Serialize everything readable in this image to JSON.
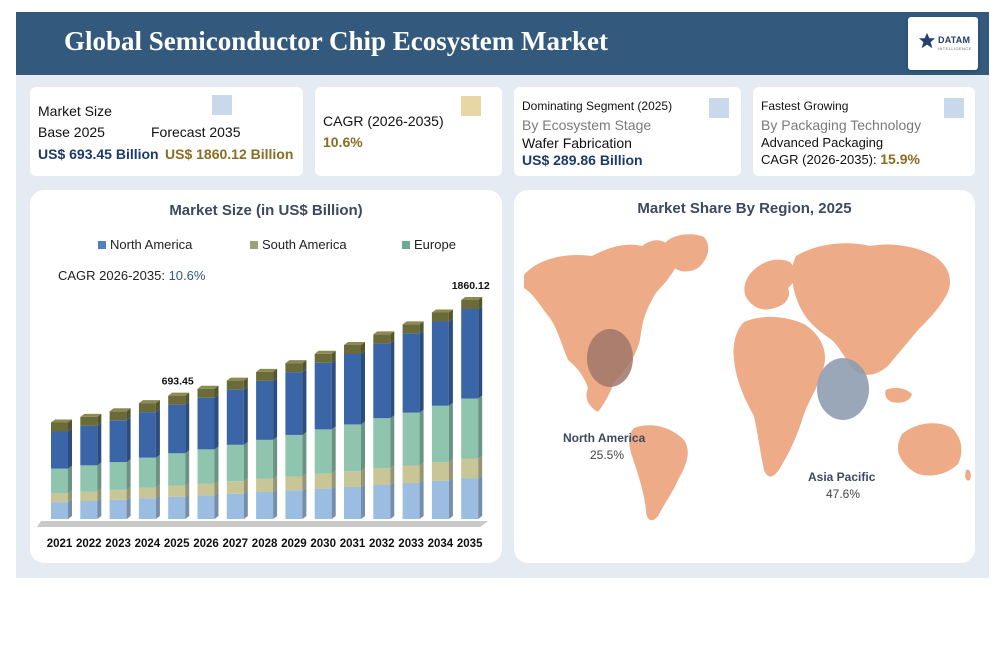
{
  "header": {
    "title": "Global Semiconductor Chip Ecosystem Market",
    "logo_text": "DATAM",
    "logo_sub": "INTELLIGENCE"
  },
  "cards": {
    "market_size": {
      "title": "Market Size",
      "base_label": "Base 2025",
      "forecast_label": "Forecast 2035",
      "base_value": "US$ 693.45 Billion",
      "forecast_value": "US$ 1860.12 Billion",
      "accent": "#c9d8ea"
    },
    "cagr": {
      "title": "CAGR (2026-2035)",
      "value": "10.6%",
      "accent": "#e8d7a4"
    },
    "dominating": {
      "title": "Dominating Segment (2025)",
      "category": "By Ecosystem Stage",
      "segment": "Wafer Fabrication",
      "value": "US$ 289.86 Billion",
      "accent": "#c9d8ea"
    },
    "fastest": {
      "title": "Fastest Growing",
      "category": "By Packaging Technology",
      "segment": "Advanced Packaging",
      "cagr_label": "CAGR (2026-2035):",
      "cagr_value": "15.9%",
      "accent": "#c9d8ea"
    }
  },
  "bar_panel": {
    "title": "Market Size (in US$ Billion)",
    "cagr_label": "CAGR 2026-2035:",
    "cagr_value": "10.6%"
  },
  "map_panel": {
    "title": "Market Share By Region, 2025",
    "regions": [
      {
        "name": "North America",
        "share": "25.5%"
      },
      {
        "name": "Asia Pacific",
        "share": "47.6%"
      }
    ]
  },
  "chart_data": {
    "type": "bar",
    "stacked": true,
    "title": "Market Size (in US$ Billion)",
    "categories": [
      "2021",
      "2022",
      "2023",
      "2024",
      "2025",
      "2026",
      "2027",
      "2028",
      "2029",
      "2030",
      "2031",
      "2032",
      "2033",
      "2034",
      "2035"
    ],
    "series": [
      {
        "name": "North America",
        "color": "#4f81bd",
        "values": [
          60,
          64,
          68,
          74,
          79,
          84,
          90,
          96,
          102,
          108,
          114,
          121,
          128,
          136,
          144
        ]
      },
      {
        "name": "South America",
        "color": "#9aa37a",
        "values": [
          14,
          15,
          16,
          17,
          18,
          19,
          20,
          21,
          22,
          24,
          25,
          27,
          28,
          30,
          32
        ]
      },
      {
        "name": "Europe",
        "color": "#6fa894",
        "values": [
          66,
          70,
          74,
          80,
          86,
          91,
          97,
          104,
          111,
          118,
          125,
          133,
          141,
          150,
          160
        ]
      }
    ],
    "data_labels": [
      {
        "category": "2025",
        "text": "693.45"
      },
      {
        "category": "2035",
        "text": "1860.12"
      }
    ],
    "legend": "top",
    "grid": false
  }
}
